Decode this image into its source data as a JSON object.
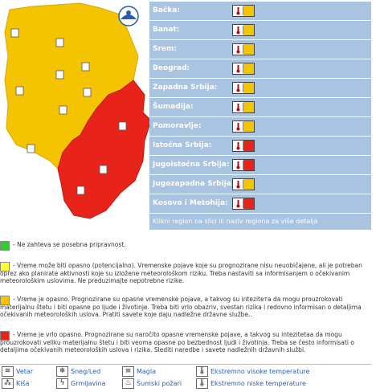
{
  "regions": [
    {
      "name": "Bačka:",
      "level_color": "#f5c400"
    },
    {
      "name": "Banat:",
      "level_color": "#f5c400"
    },
    {
      "name": "Srem:",
      "level_color": "#f5c400"
    },
    {
      "name": "Beograd:",
      "level_color": "#f5c400"
    },
    {
      "name": "Zapadna Srbija:",
      "level_color": "#f5c400"
    },
    {
      "name": "Šumadija:",
      "level_color": "#f5c400"
    },
    {
      "name": "Pomoravlje:",
      "level_color": "#f5c400"
    },
    {
      "name": "Istočna Srbija:",
      "level_color": "#e8231a"
    },
    {
      "name": "Jugoistočna Srbija:",
      "level_color": "#e8231a"
    },
    {
      "name": "Jugozapadna Srbija:",
      "level_color": "#f5c400"
    },
    {
      "name": "Kosovo i Metohija:",
      "level_color": "#e8231a"
    }
  ],
  "hint": "Klikni region na slici ili naziv regiona za više detalja",
  "legend": [
    {
      "color": "#33cc33",
      "text": "- Ne zahteva se posebna pripravnost."
    },
    {
      "color": "#ffff33",
      "text": "- Vreme može biti opasno (potencijalno). Vremenske pojave koje su prognozirane nisu neuobičajene, ali je potreban oprez ako planirate aktivnosti koje su izložene meteorološkom riziku. Treba nastaviti sa informisanjem o očekivanim meteorološkim uslovima. Ne preduzimajte nepotrebne rizike."
    },
    {
      "color": "#f5c400",
      "text": "- Vreme je opasno. Prognozirane su opasne vremenske pojave, a takvog su intezitета da mogu prouzrokovati materijalnu štetu i biti opasne po ljude i životinje. Treba biti vrlo obazriv, svestan rizika i redovno informisan o detaljima očekivanih meteoroloških uslova. Pratiti savete koje daju nadležne državne službe.."
    },
    {
      "color": "#e8231a",
      "text": "- Vreme je vrlo opasno. Prognozirane su naročito opasne vremenske pojave, a takvog su intezitetaa da mogu prouzrokovati veliku materijalnu štetu i biti veoma opasne po bezbednost ljudi i životinja. Treba se često informisati o detaljima očekivanih meteoroloških uslova i rizika. Slediti naredbe i savete nadležnih državnih službi."
    }
  ],
  "icons": [
    {
      "icon": "wind-icon",
      "glyph": "≋",
      "label": "Vetar"
    },
    {
      "icon": "snow-ice-icon",
      "glyph": "❄",
      "label": "Sneg/Led"
    },
    {
      "icon": "fog-icon",
      "glyph": "≡",
      "label": "Magla"
    },
    {
      "icon": "extreme-high-temp-icon",
      "glyph": "🌡",
      "label": "Ekstremno visoke temperature"
    },
    {
      "icon": "rain-icon",
      "glyph": "⁂",
      "label": "Kiša"
    },
    {
      "icon": "thunderstorm-icon",
      "glyph": "ϟ",
      "label": "Grmljavina"
    },
    {
      "icon": "forest-fire-icon",
      "glyph": "♨",
      "label": "Šumski požari"
    },
    {
      "icon": "extreme-low-temp-icon",
      "glyph": "🌡",
      "label": "Ekstremno niske temperature"
    }
  ],
  "colors": {
    "warning_yellow": "#f5c400",
    "warning_red": "#e8231a",
    "panel_blue": "#a8c4e0"
  }
}
